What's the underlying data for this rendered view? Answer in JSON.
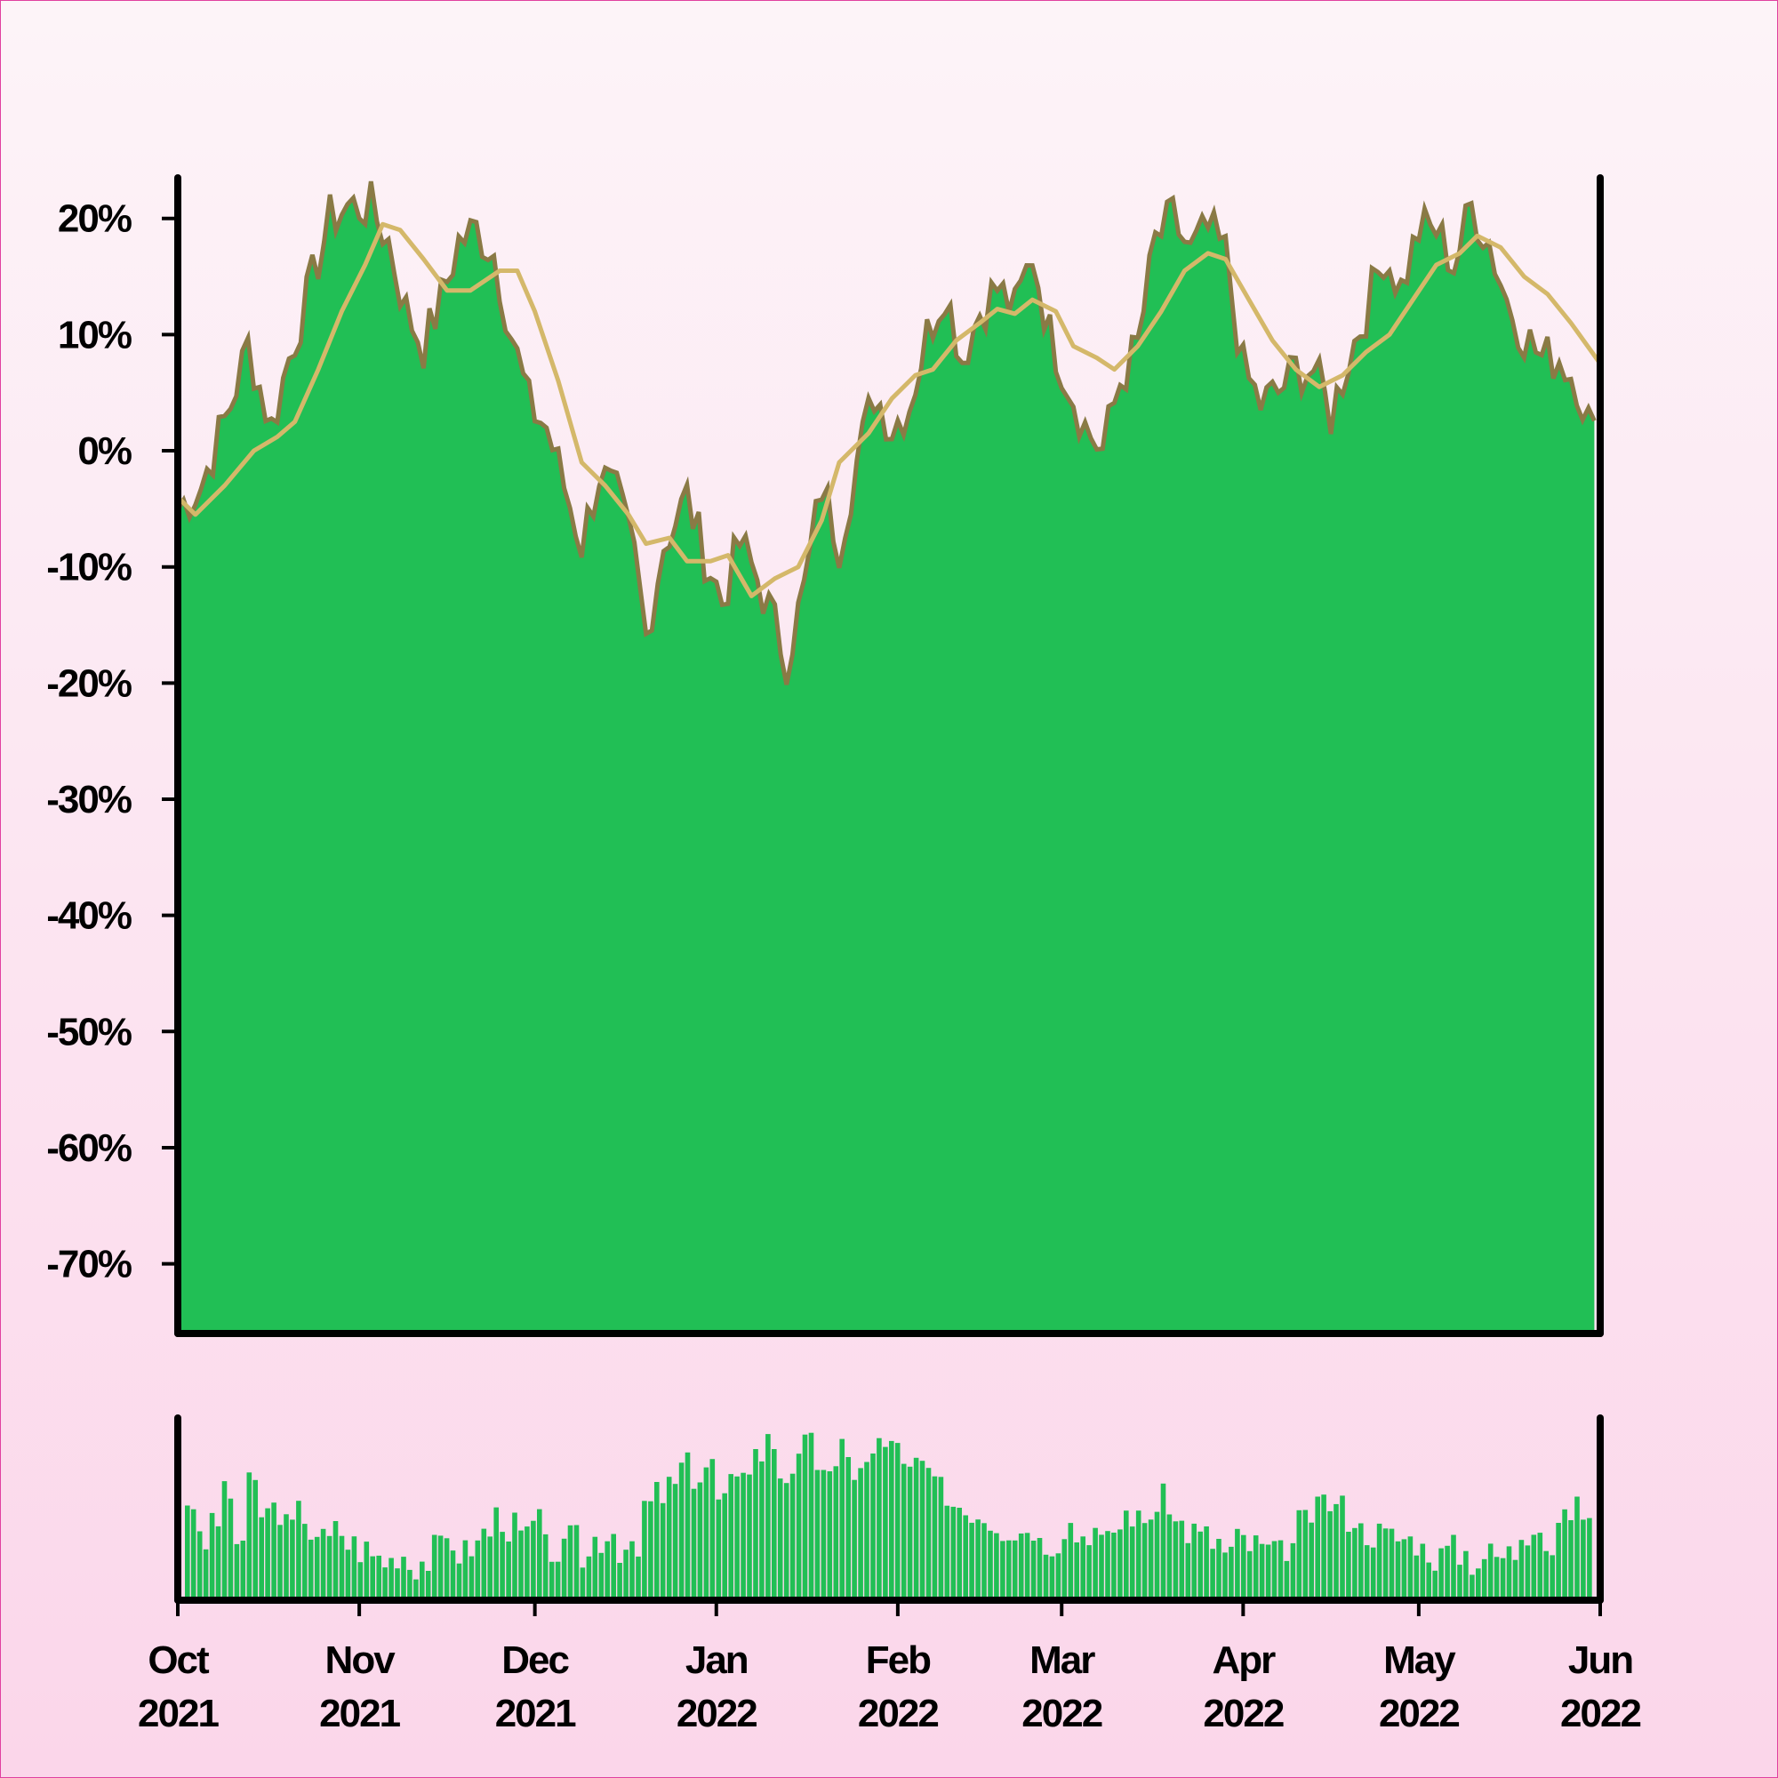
{
  "colors": {
    "area_fill": "#21bf55",
    "area_edge": "#8a7a45",
    "moving_average": "#d4b86a",
    "volume": "#21bf55",
    "axis": "#000000"
  },
  "chart_data": [
    {
      "type": "area",
      "title": "",
      "xlabel": "",
      "ylabel": "",
      "x_range": [
        "2021-10-01",
        "2022-06-01"
      ],
      "ylim": [
        -76,
        23.5
      ],
      "y_ticks": [
        {
          "value": 20,
          "label": "20%"
        },
        {
          "value": 10,
          "label": "10%"
        },
        {
          "value": 0,
          "label": "0%"
        },
        {
          "value": -10,
          "label": "-10%"
        },
        {
          "value": -20,
          "label": "-20%"
        },
        {
          "value": -30,
          "label": "-30%"
        },
        {
          "value": -40,
          "label": "-40%"
        },
        {
          "value": -50,
          "label": "-50%"
        },
        {
          "value": -60,
          "label": "-60%"
        },
        {
          "value": -70,
          "label": "-70%"
        }
      ],
      "series": [
        {
          "kind": "area",
          "points": [
            [
              "2021-10-01",
              -5
            ],
            [
              "2021-10-05",
              -3
            ],
            [
              "2021-10-10",
              4
            ],
            [
              "2021-10-13",
              9
            ],
            [
              "2021-10-17",
              2
            ],
            [
              "2021-10-20",
              8
            ],
            [
              "2021-10-23",
              13
            ],
            [
              "2021-10-27",
              20
            ],
            [
              "2021-10-30",
              21
            ],
            [
              "2021-11-03",
              21
            ],
            [
              "2021-11-06",
              18
            ],
            [
              "2021-11-09",
              12
            ],
            [
              "2021-11-12",
              9
            ],
            [
              "2021-11-15",
              13
            ],
            [
              "2021-11-18",
              18
            ],
            [
              "2021-11-21",
              19
            ],
            [
              "2021-11-24",
              17
            ],
            [
              "2021-11-27",
              10
            ],
            [
              "2021-11-30",
              4
            ],
            [
              "2021-12-03",
              2
            ],
            [
              "2021-12-06",
              -3
            ],
            [
              "2021-12-09",
              -8
            ],
            [
              "2021-12-12",
              -2
            ],
            [
              "2021-12-15",
              -4
            ],
            [
              "2021-12-18",
              -9
            ],
            [
              "2021-12-20",
              -16
            ],
            [
              "2021-12-23",
              -8
            ],
            [
              "2021-12-27",
              -4
            ],
            [
              "2021-12-30",
              -9
            ],
            [
              "2022-01-02",
              -13
            ],
            [
              "2022-01-05",
              -8
            ],
            [
              "2022-01-08",
              -11
            ],
            [
              "2022-01-11",
              -15
            ],
            [
              "2022-01-13",
              -18
            ],
            [
              "2022-01-16",
              -12
            ],
            [
              "2022-01-19",
              -3
            ],
            [
              "2022-01-22",
              -8
            ],
            [
              "2022-01-25",
              -1
            ],
            [
              "2022-01-28",
              5
            ],
            [
              "2022-01-31",
              2
            ],
            [
              "2022-02-03",
              4
            ],
            [
              "2022-02-06",
              10
            ],
            [
              "2022-02-09",
              14
            ],
            [
              "2022-02-12",
              8
            ],
            [
              "2022-02-15",
              12
            ],
            [
              "2022-02-18",
              14
            ],
            [
              "2022-02-21",
              12
            ],
            [
              "2022-02-24",
              17
            ],
            [
              "2022-02-27",
              10
            ],
            [
              "2022-03-02",
              6
            ],
            [
              "2022-03-05",
              2
            ],
            [
              "2022-03-08",
              0
            ],
            [
              "2022-03-11",
              6
            ],
            [
              "2022-03-14",
              9
            ],
            [
              "2022-03-17",
              18
            ],
            [
              "2022-03-20",
              20
            ],
            [
              "2022-03-23",
              17
            ],
            [
              "2022-03-26",
              19
            ],
            [
              "2022-03-29",
              17
            ],
            [
              "2022-04-01",
              7
            ],
            [
              "2022-04-04",
              4
            ],
            [
              "2022-04-07",
              5
            ],
            [
              "2022-04-10",
              7
            ],
            [
              "2022-04-13",
              7
            ],
            [
              "2022-04-16",
              3
            ],
            [
              "2022-04-19",
              8
            ],
            [
              "2022-04-22",
              12
            ],
            [
              "2022-04-25",
              17
            ],
            [
              "2022-04-28",
              14
            ],
            [
              "2022-05-01",
              19
            ],
            [
              "2022-05-04",
              19
            ],
            [
              "2022-05-07",
              16
            ],
            [
              "2022-05-10",
              21
            ],
            [
              "2022-05-13",
              18
            ],
            [
              "2022-05-16",
              13
            ],
            [
              "2022-05-19",
              10
            ],
            [
              "2022-05-22",
              8
            ],
            [
              "2022-05-25",
              8
            ],
            [
              "2022-05-28",
              6
            ],
            [
              "2022-05-31",
              1
            ]
          ]
        },
        {
          "kind": "line",
          "points": [
            [
              "2021-10-01",
              -4
            ],
            [
              "2021-10-04",
              -5.5
            ],
            [
              "2021-10-09",
              -3
            ],
            [
              "2021-10-14",
              0
            ],
            [
              "2021-10-18",
              1.2
            ],
            [
              "2021-10-21",
              2.5
            ],
            [
              "2021-10-25",
              7
            ],
            [
              "2021-10-29",
              12
            ],
            [
              "2021-11-02",
              16
            ],
            [
              "2021-11-05",
              19.5
            ],
            [
              "2021-11-08",
              19
            ],
            [
              "2021-11-12",
              16.5
            ],
            [
              "2021-11-16",
              13.8
            ],
            [
              "2021-11-20",
              13.8
            ],
            [
              "2021-11-25",
              15.5
            ],
            [
              "2021-11-28",
              15.5
            ],
            [
              "2021-12-01",
              12
            ],
            [
              "2021-12-05",
              6
            ],
            [
              "2021-12-09",
              -1
            ],
            [
              "2021-12-13",
              -3
            ],
            [
              "2021-12-17",
              -5.5
            ],
            [
              "2021-12-20",
              -8
            ],
            [
              "2021-12-24",
              -7.5
            ],
            [
              "2021-12-27",
              -9.5
            ],
            [
              "2021-12-31",
              -9.5
            ],
            [
              "2022-01-03",
              -9
            ],
            [
              "2022-01-07",
              -12.5
            ],
            [
              "2022-01-11",
              -11
            ],
            [
              "2022-01-15",
              -10
            ],
            [
              "2022-01-19",
              -6
            ],
            [
              "2022-01-22",
              -1
            ],
            [
              "2022-01-27",
              1.5
            ],
            [
              "2022-01-31",
              4.5
            ],
            [
              "2022-02-04",
              6.5
            ],
            [
              "2022-02-07",
              7
            ],
            [
              "2022-02-11",
              9.5
            ],
            [
              "2022-02-15",
              11
            ],
            [
              "2022-02-18",
              12.2
            ],
            [
              "2022-02-21",
              11.8
            ],
            [
              "2022-02-24",
              13
            ],
            [
              "2022-02-28",
              12
            ],
            [
              "2022-03-03",
              9
            ],
            [
              "2022-03-07",
              8
            ],
            [
              "2022-03-10",
              7
            ],
            [
              "2022-03-14",
              9
            ],
            [
              "2022-03-18",
              12
            ],
            [
              "2022-03-22",
              15.5
            ],
            [
              "2022-03-26",
              17
            ],
            [
              "2022-03-29",
              16.5
            ],
            [
              "2022-04-02",
              13
            ],
            [
              "2022-04-06",
              9.5
            ],
            [
              "2022-04-10",
              7
            ],
            [
              "2022-04-14",
              5.5
            ],
            [
              "2022-04-18",
              6.5
            ],
            [
              "2022-04-22",
              8.5
            ],
            [
              "2022-04-26",
              10
            ],
            [
              "2022-04-30",
              13
            ],
            [
              "2022-05-04",
              16
            ],
            [
              "2022-05-08",
              17
            ],
            [
              "2022-05-11",
              18.5
            ],
            [
              "2022-05-15",
              17.5
            ],
            [
              "2022-05-19",
              15
            ],
            [
              "2022-05-23",
              13.5
            ],
            [
              "2022-05-27",
              11
            ],
            [
              "2022-06-01",
              7.5
            ]
          ]
        }
      ]
    },
    {
      "type": "bar",
      "title": "",
      "xlabel": "",
      "ylabel": "",
      "x_range": [
        "2021-10-01",
        "2022-06-01"
      ],
      "ylim": [
        0,
        1
      ],
      "values": [
        0.55,
        0.3,
        0.45,
        0.57,
        0.33,
        0.62,
        0.48,
        0.5,
        0.4,
        0.48,
        0.38,
        0.33,
        0.38,
        0.31,
        0.28,
        0.24,
        0.22,
        0.26,
        0.2,
        0.22,
        0.28,
        0.33,
        0.26,
        0.3,
        0.38,
        0.46,
        0.4,
        0.35,
        0.42,
        0.28,
        0.26,
        0.33,
        0.24,
        0.34,
        0.38,
        0.29,
        0.24,
        0.52,
        0.58,
        0.62,
        0.73,
        0.69,
        0.74,
        0.55,
        0.62,
        0.76,
        0.81,
        0.87,
        0.7,
        0.74,
        0.84,
        0.76,
        0.66,
        0.85,
        0.7,
        0.76,
        0.89,
        0.83,
        0.7,
        0.76,
        0.64,
        0.6,
        0.53,
        0.5,
        0.48,
        0.44,
        0.4,
        0.38,
        0.41,
        0.32,
        0.33,
        0.42,
        0.36,
        0.39,
        0.31,
        0.4,
        0.48,
        0.43,
        0.5,
        0.55,
        0.42,
        0.38,
        0.35,
        0.32,
        0.26,
        0.33,
        0.3,
        0.28,
        0.25,
        0.3,
        0.42,
        0.48,
        0.54,
        0.51,
        0.46,
        0.38,
        0.37,
        0.35,
        0.34,
        0.33,
        0.28,
        0.24,
        0.28,
        0.26,
        0.22,
        0.25,
        0.24,
        0.26,
        0.38,
        0.44,
        0.3,
        0.42,
        0.5,
        0.48
      ]
    }
  ],
  "x_axis": {
    "ticks": [
      {
        "date": "2021-10-01",
        "month": "Oct",
        "year": "2021"
      },
      {
        "date": "2021-11-01",
        "month": "Nov",
        "year": "2021"
      },
      {
        "date": "2021-12-01",
        "month": "Dec",
        "year": "2021"
      },
      {
        "date": "2022-01-01",
        "month": "Jan",
        "year": "2022"
      },
      {
        "date": "2022-02-01",
        "month": "Feb",
        "year": "2022"
      },
      {
        "date": "2022-03-01",
        "month": "Mar",
        "year": "2022"
      },
      {
        "date": "2022-04-01",
        "month": "Apr",
        "year": "2022"
      },
      {
        "date": "2022-05-01",
        "month": "May",
        "year": "2022"
      },
      {
        "date": "2022-06-01",
        "month": "Jun",
        "year": "2022"
      }
    ]
  }
}
